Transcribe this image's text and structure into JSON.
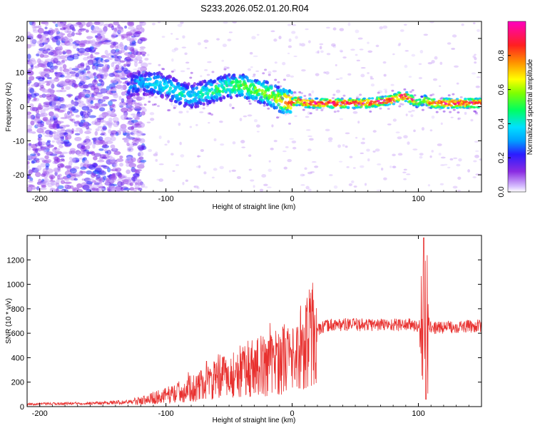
{
  "title": "S233.2026.052.01.20.R04",
  "chart_data": [
    {
      "type": "heatmap",
      "name": "spectrogram",
      "xlabel": "Height of straight line (km)",
      "ylabel": "Frequency (Hz)",
      "xlim": [
        -210,
        150
      ],
      "ylim": [
        -25,
        25
      ],
      "x_ticks": [
        -200,
        -100,
        0,
        100
      ],
      "x_tick_labels": [
        "-200",
        "-100",
        "0",
        "100"
      ],
      "y_ticks": [
        -20,
        -10,
        0,
        10,
        20
      ],
      "y_tick_labels": [
        "-20",
        "-10",
        "0",
        "10",
        "20"
      ],
      "colorbar": {
        "label": "Normalized spectral amplitude",
        "range": [
          0,
          1
        ],
        "ticks": [
          0.0,
          0.2,
          0.4,
          0.6,
          0.8
        ],
        "tick_labels": [
          "0.0",
          "0.2",
          "0.4",
          "0.6",
          "0.8"
        ]
      },
      "ridge": {
        "x": [
          -130,
          -120,
          -110,
          -100,
          -90,
          -80,
          -70,
          -60,
          -50,
          -40,
          -30,
          -20,
          -10,
          0,
          5,
          10,
          20,
          40,
          60,
          80,
          85,
          90,
          95,
          100,
          105,
          110,
          120,
          130,
          140,
          150
        ],
        "freq": [
          6,
          7,
          7,
          6,
          4,
          3,
          4,
          5,
          6,
          6,
          5,
          4,
          2,
          1,
          2,
          1,
          1,
          1,
          1,
          2,
          3,
          3,
          2,
          1,
          2,
          1,
          1,
          1,
          1,
          1
        ],
        "amplitude": [
          0.3,
          0.35,
          0.4,
          0.4,
          0.45,
          0.4,
          0.45,
          0.5,
          0.5,
          0.55,
          0.55,
          0.6,
          0.7,
          0.85,
          0.8,
          0.9,
          0.95,
          0.95,
          0.95,
          0.95,
          0.95,
          0.95,
          0.9,
          0.6,
          0.7,
          0.9,
          0.95,
          0.95,
          0.95,
          0.95
        ]
      },
      "noise_region_x": [
        -210,
        -125
      ]
    },
    {
      "type": "line",
      "name": "snr",
      "xlabel": "Height of straight line (km)",
      "ylabel": "SNR (10 * v/v)",
      "xlim": [
        -210,
        150
      ],
      "ylim": [
        0,
        1400
      ],
      "x_ticks": [
        -200,
        -100,
        0,
        100
      ],
      "x_tick_labels": [
        "-200",
        "-100",
        "0",
        "100"
      ],
      "y_ticks": [
        0,
        200,
        400,
        600,
        800,
        1000,
        1200
      ],
      "y_tick_labels": [
        "0",
        "200",
        "400",
        "600",
        "800",
        "1000",
        "1200"
      ],
      "color": "#e8312f",
      "envelope": {
        "x": [
          -210,
          -180,
          -150,
          -125,
          -110,
          -100,
          -90,
          -80,
          -70,
          -60,
          -50,
          -40,
          -30,
          -20,
          -10,
          0,
          5,
          10,
          15,
          20,
          25,
          30,
          40,
          60,
          80,
          95,
          100,
          103,
          105,
          107,
          110,
          120,
          150
        ],
        "y": [
          20,
          25,
          30,
          40,
          70,
          90,
          120,
          150,
          180,
          220,
          250,
          290,
          330,
          340,
          380,
          430,
          480,
          520,
          580,
          620,
          650,
          670,
          670,
          670,
          670,
          670,
          650,
          700,
          500,
          700,
          640,
          650,
          660
        ]
      }
    }
  ]
}
